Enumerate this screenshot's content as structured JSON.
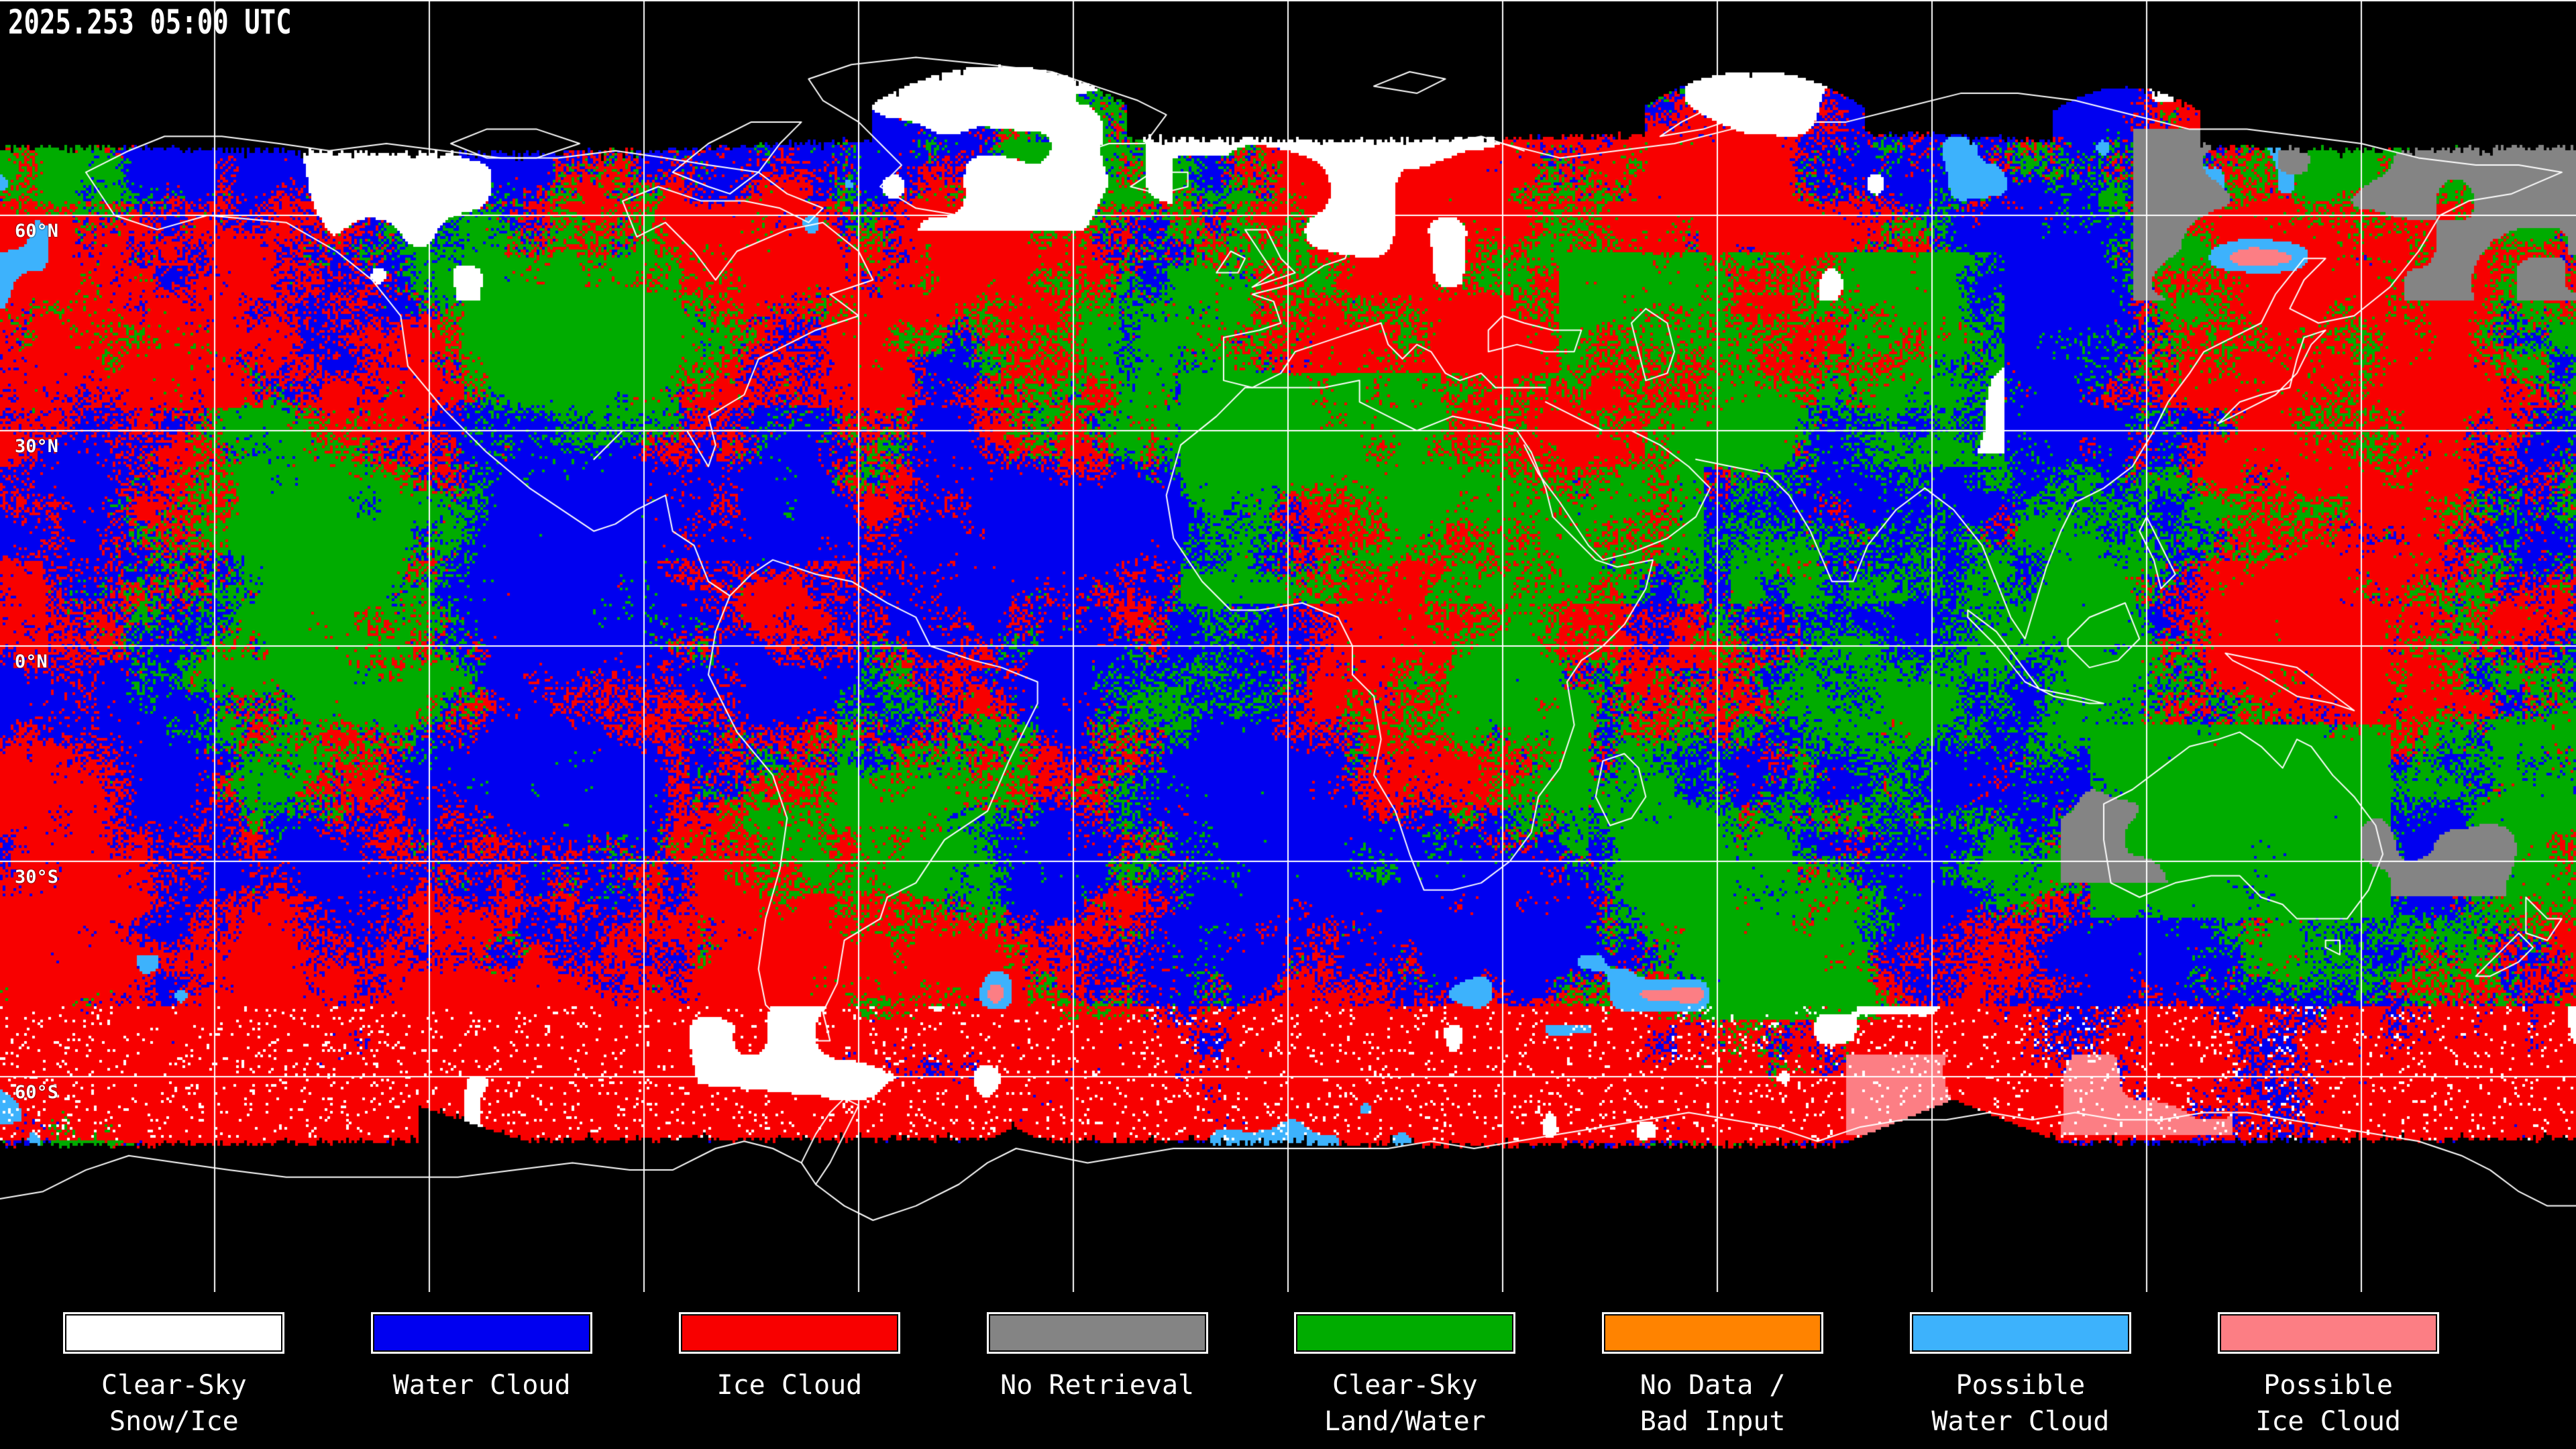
{
  "header": {
    "title": "2025.253 05:00 UTC"
  },
  "map": {
    "latitude_labels": [
      {
        "text": "60°N",
        "lat": 60
      },
      {
        "text": "30°N",
        "lat": 30
      },
      {
        "text": "0°N",
        "lat": 0
      },
      {
        "text": "30°S",
        "lat": -30
      },
      {
        "text": "60°S",
        "lat": -60
      }
    ],
    "colors": {
      "background": "#000000",
      "coastline": "#ffffff",
      "graticule": "#ffffff",
      "label_text": "#ffffff"
    }
  },
  "legend": {
    "items": [
      {
        "label_line1": "Clear-Sky",
        "label_line2": "Snow/Ice",
        "color": "#ffffff"
      },
      {
        "label_line1": "Water Cloud",
        "label_line2": "",
        "color": "#0000f0"
      },
      {
        "label_line1": "Ice Cloud",
        "label_line2": "",
        "color": "#f80000"
      },
      {
        "label_line1": "No Retrieval",
        "label_line2": "",
        "color": "#848484"
      },
      {
        "label_line1": "Clear-Sky",
        "label_line2": "Land/Water",
        "color": "#00ac00"
      },
      {
        "label_line1": "No Data /",
        "label_line2": "Bad Input",
        "color": "#ff8300"
      },
      {
        "label_line1": "Possible",
        "label_line2": "Water Cloud",
        "color": "#3db2fc"
      },
      {
        "label_line1": "Possible",
        "label_line2": "Ice Cloud",
        "color": "#fc7e84"
      }
    ]
  }
}
